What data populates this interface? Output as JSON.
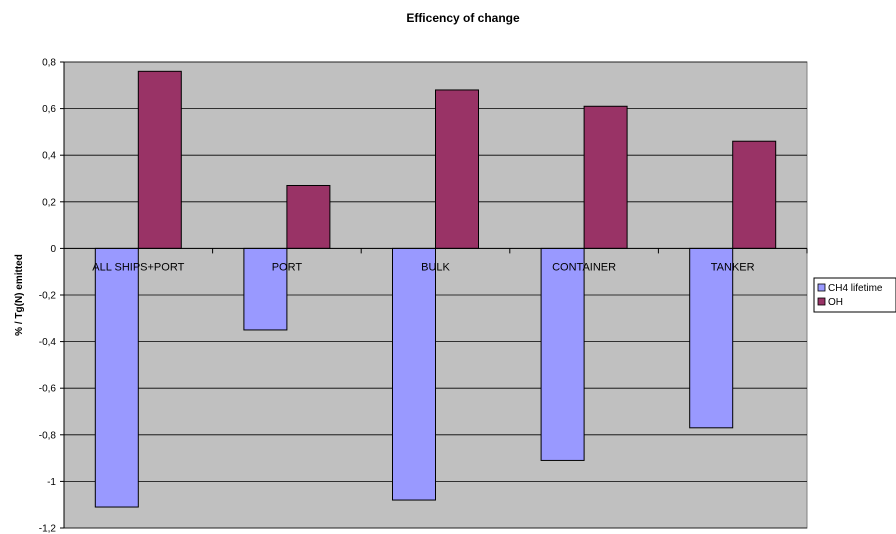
{
  "chart_data": {
    "type": "bar",
    "title": "Efficency of change",
    "xlabel": "",
    "ylabel": "% / Tg(N) emitted",
    "categories": [
      "ALL SHIPS+PORT",
      "PORT",
      "BULK",
      "CONTAINER",
      "TANKER"
    ],
    "series": [
      {
        "name": "CH4 lifetime",
        "values": [
          -1.11,
          -0.35,
          -1.08,
          -0.91,
          -0.77
        ]
      },
      {
        "name": "OH",
        "values": [
          0.76,
          0.27,
          0.68,
          0.61,
          0.46
        ]
      }
    ],
    "ylim": [
      -1.2,
      0.8
    ],
    "yticks": [
      "0,8",
      "0,6",
      "0,4",
      "0,2",
      "0",
      "-0,2",
      "-0,4",
      "-0,6",
      "-0,8",
      "-1",
      "-1,2"
    ],
    "grid": true,
    "legend_position": "right",
    "colors": {
      "plot_bg": "#C0C0C0",
      "series": [
        "#9999FF",
        "#993366"
      ],
      "grid": "#000000"
    }
  }
}
